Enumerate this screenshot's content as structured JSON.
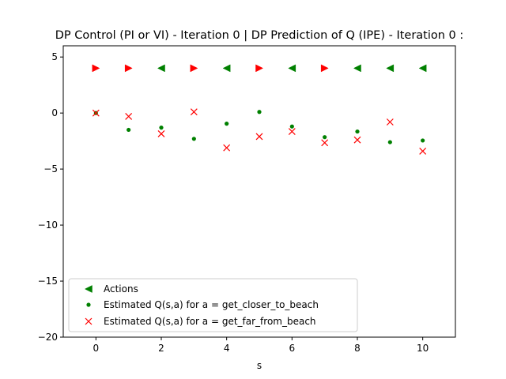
{
  "chart_data": {
    "type": "scatter",
    "title": "DP Control (PI or VI) - Iteration 0 | DP Prediction of Q (IPE) - Iteration 0 :",
    "xlabel": "s",
    "ylabel": "",
    "xlim": [
      -1,
      11
    ],
    "ylim": [
      -20,
      6
    ],
    "xticks": [
      0,
      2,
      4,
      6,
      8,
      10
    ],
    "yticks": [
      5,
      0,
      -5,
      -10,
      -15,
      -20
    ],
    "legend_position": "lower-left",
    "grid": false,
    "series": [
      {
        "name": "Actions",
        "marker": "triangle",
        "points": [
          {
            "x": 0,
            "y": 4,
            "dir": "right",
            "color": "#ff0000"
          },
          {
            "x": 1,
            "y": 4,
            "dir": "right",
            "color": "#ff0000"
          },
          {
            "x": 2,
            "y": 4,
            "dir": "left",
            "color": "#008000"
          },
          {
            "x": 3,
            "y": 4,
            "dir": "right",
            "color": "#ff0000"
          },
          {
            "x": 4,
            "y": 4,
            "dir": "left",
            "color": "#008000"
          },
          {
            "x": 5,
            "y": 4,
            "dir": "right",
            "color": "#ff0000"
          },
          {
            "x": 6,
            "y": 4,
            "dir": "left",
            "color": "#008000"
          },
          {
            "x": 7,
            "y": 4,
            "dir": "right",
            "color": "#ff0000"
          },
          {
            "x": 8,
            "y": 4,
            "dir": "left",
            "color": "#008000"
          },
          {
            "x": 9,
            "y": 4,
            "dir": "left",
            "color": "#008000"
          },
          {
            "x": 10,
            "y": 4,
            "dir": "left",
            "color": "#008000"
          }
        ]
      },
      {
        "name": "Estimated Q(s,a) for a = get_closer_to_beach",
        "marker": "dot",
        "color": "#008000",
        "x": [
          0,
          1,
          2,
          3,
          4,
          5,
          6,
          7,
          8,
          9,
          10
        ],
        "y": [
          0.0,
          -1.5,
          -1.3,
          -2.3,
          -0.95,
          0.1,
          -1.2,
          -2.15,
          -1.65,
          -2.6,
          -2.45
        ]
      },
      {
        "name": "Estimated Q(s,a) for a = get_far_from_beach",
        "marker": "x",
        "color": "#ff0000",
        "x": [
          0,
          1,
          2,
          3,
          4,
          5,
          6,
          7,
          8,
          9,
          10
        ],
        "y": [
          0.0,
          -0.3,
          -1.85,
          0.1,
          -3.1,
          -2.1,
          -1.65,
          -2.65,
          -2.4,
          -0.8,
          -3.4
        ]
      }
    ]
  }
}
